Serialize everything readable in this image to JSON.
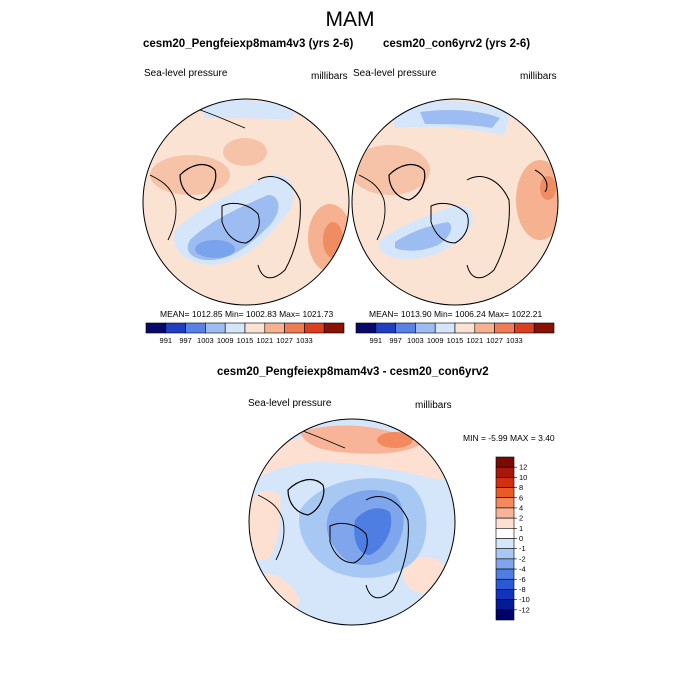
{
  "title": "MAM",
  "panels": [
    {
      "title": "cesm20_Pengfeiexp8mam4v3 (yrs 2-6)",
      "variable": "Sea-level pressure",
      "units": "millibars",
      "stats": "MEAN= 1012.85   Min= 1002.83   Max= 1021.73"
    },
    {
      "title": "cesm20_con6yrv2 (yrs 2-6)",
      "variable": "Sea-level pressure",
      "units": "millibars",
      "stats": "MEAN= 1013.90   Min= 1006.24   Max= 1022.21"
    }
  ],
  "diff": {
    "title": "cesm20_Pengfeiexp8mam4v3 - cesm20_con6yrv2",
    "variable": "Sea-level pressure",
    "units": "millibars",
    "minmax": "MIN =  -5.99 MAX =   3.40"
  },
  "chart_data": [
    {
      "type": "heatmap",
      "title": "cesm20_Pengfeiexp8mam4v3 (yrs 2-6)",
      "projection": "north polar stereographic",
      "variable": "Sea-level pressure",
      "units": "millibars",
      "mean": 1012.85,
      "min": 1002.83,
      "max": 1021.73,
      "colorbar_levels": [
        991,
        997,
        1003,
        1009,
        1015,
        1021,
        1027,
        1033
      ]
    },
    {
      "type": "heatmap",
      "title": "cesm20_con6yrv2 (yrs 2-6)",
      "projection": "north polar stereographic",
      "variable": "Sea-level pressure",
      "units": "millibars",
      "mean": 1013.9,
      "min": 1006.24,
      "max": 1022.21,
      "colorbar_levels": [
        991,
        997,
        1003,
        1009,
        1015,
        1021,
        1027,
        1033
      ]
    },
    {
      "type": "heatmap",
      "title": "cesm20_Pengfeiexp8mam4v3 - cesm20_con6yrv2",
      "projection": "north polar stereographic",
      "variable": "Sea-level pressure",
      "units": "millibars",
      "min": -5.99,
      "max": 3.4,
      "colorbar_levels": [
        12,
        10,
        8,
        6,
        4,
        2,
        1,
        0,
        -1,
        -2,
        -4,
        -6,
        -8,
        -10,
        -12
      ]
    }
  ],
  "colors": {
    "abs_scale": [
      "#08086b",
      "#1f3fc2",
      "#5a82e6",
      "#9dbcf2",
      "#d6e6fa",
      "#fbe3d3",
      "#f6b290",
      "#ef7c55",
      "#d9401f",
      "#8a1203"
    ],
    "diff_scale": [
      "#7a0b02",
      "#a8180a",
      "#d12f10",
      "#ea5a26",
      "#f38a5f",
      "#f7b498",
      "#fde0d2",
      "#ffffff",
      "#d6e6fa",
      "#a8c8f4",
      "#7fa6ec",
      "#4f7ee3",
      "#2a58d6",
      "#1233bb",
      "#051b95",
      "#00006b"
    ]
  }
}
